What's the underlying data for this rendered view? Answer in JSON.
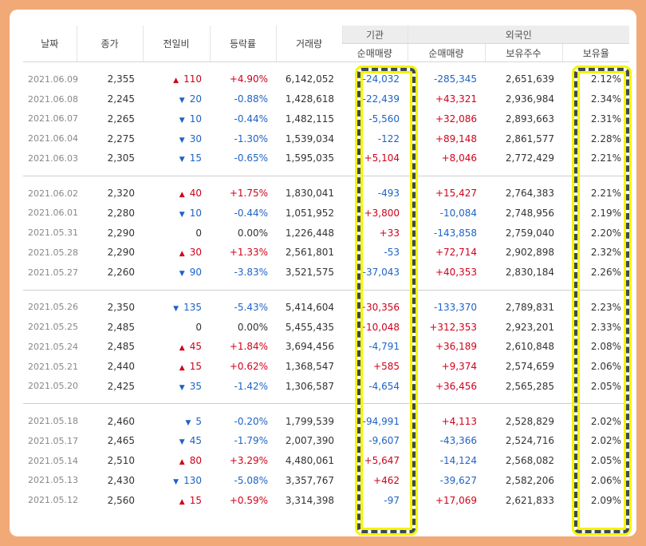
{
  "colors": {
    "up": "#d0021b",
    "down": "#1d63c6",
    "highlight": "#f6f400",
    "frame": "#f2a978"
  },
  "headers": {
    "date": "날짜",
    "close": "종가",
    "change": "전일비",
    "rate": "등락률",
    "volume": "거래량",
    "institution": "기관",
    "foreign": "외국인",
    "inst_net": "순매매량",
    "for_net": "순매매량",
    "holdings": "보유주수",
    "ratio": "보유율"
  },
  "groups": [
    [
      {
        "date": "2021.06.09",
        "close": "2,355",
        "dir": "up",
        "change": "110",
        "rate": "+4.90%",
        "volume": "6,142,052",
        "inst": "-24,032",
        "foreign": "-285,345",
        "holdings": "2,651,639",
        "ratio": "2.12%"
      },
      {
        "date": "2021.06.08",
        "close": "2,245",
        "dir": "down",
        "change": "20",
        "rate": "-0.88%",
        "volume": "1,428,618",
        "inst": "-22,439",
        "foreign": "+43,321",
        "holdings": "2,936,984",
        "ratio": "2.34%"
      },
      {
        "date": "2021.06.07",
        "close": "2,265",
        "dir": "down",
        "change": "10",
        "rate": "-0.44%",
        "volume": "1,482,115",
        "inst": "-5,560",
        "foreign": "+32,086",
        "holdings": "2,893,663",
        "ratio": "2.31%"
      },
      {
        "date": "2021.06.04",
        "close": "2,275",
        "dir": "down",
        "change": "30",
        "rate": "-1.30%",
        "volume": "1,539,034",
        "inst": "-122",
        "foreign": "+89,148",
        "holdings": "2,861,577",
        "ratio": "2.28%"
      },
      {
        "date": "2021.06.03",
        "close": "2,305",
        "dir": "down",
        "change": "15",
        "rate": "-0.65%",
        "volume": "1,595,035",
        "inst": "+5,104",
        "foreign": "+8,046",
        "holdings": "2,772,429",
        "ratio": "2.21%"
      }
    ],
    [
      {
        "date": "2021.06.02",
        "close": "2,320",
        "dir": "up",
        "change": "40",
        "rate": "+1.75%",
        "volume": "1,830,041",
        "inst": "-493",
        "foreign": "+15,427",
        "holdings": "2,764,383",
        "ratio": "2.21%"
      },
      {
        "date": "2021.06.01",
        "close": "2,280",
        "dir": "down",
        "change": "10",
        "rate": "-0.44%",
        "volume": "1,051,952",
        "inst": "+3,800",
        "foreign": "-10,084",
        "holdings": "2,748,956",
        "ratio": "2.19%"
      },
      {
        "date": "2021.05.31",
        "close": "2,290",
        "dir": "flat",
        "change": "0",
        "rate": "0.00%",
        "volume": "1,226,448",
        "inst": "+33",
        "foreign": "-143,858",
        "holdings": "2,759,040",
        "ratio": "2.20%"
      },
      {
        "date": "2021.05.28",
        "close": "2,290",
        "dir": "up",
        "change": "30",
        "rate": "+1.33%",
        "volume": "2,561,801",
        "inst": "-53",
        "foreign": "+72,714",
        "holdings": "2,902,898",
        "ratio": "2.32%"
      },
      {
        "date": "2021.05.27",
        "close": "2,260",
        "dir": "down",
        "change": "90",
        "rate": "-3.83%",
        "volume": "3,521,575",
        "inst": "-37,043",
        "foreign": "+40,353",
        "holdings": "2,830,184",
        "ratio": "2.26%"
      }
    ],
    [
      {
        "date": "2021.05.26",
        "close": "2,350",
        "dir": "down",
        "change": "135",
        "rate": "-5.43%",
        "volume": "5,414,604",
        "inst": "+30,356",
        "foreign": "-133,370",
        "holdings": "2,789,831",
        "ratio": "2.23%"
      },
      {
        "date": "2021.05.25",
        "close": "2,485",
        "dir": "flat",
        "change": "0",
        "rate": "0.00%",
        "volume": "5,455,435",
        "inst": "+10,048",
        "foreign": "+312,353",
        "holdings": "2,923,201",
        "ratio": "2.33%"
      },
      {
        "date": "2021.05.24",
        "close": "2,485",
        "dir": "up",
        "change": "45",
        "rate": "+1.84%",
        "volume": "3,694,456",
        "inst": "-4,791",
        "foreign": "+36,189",
        "holdings": "2,610,848",
        "ratio": "2.08%"
      },
      {
        "date": "2021.05.21",
        "close": "2,440",
        "dir": "up",
        "change": "15",
        "rate": "+0.62%",
        "volume": "1,368,547",
        "inst": "+585",
        "foreign": "+9,374",
        "holdings": "2,574,659",
        "ratio": "2.06%"
      },
      {
        "date": "2021.05.20",
        "close": "2,425",
        "dir": "down",
        "change": "35",
        "rate": "-1.42%",
        "volume": "1,306,587",
        "inst": "-4,654",
        "foreign": "+36,456",
        "holdings": "2,565,285",
        "ratio": "2.05%"
      }
    ],
    [
      {
        "date": "2021.05.18",
        "close": "2,460",
        "dir": "down",
        "change": "5",
        "rate": "-0.20%",
        "volume": "1,799,539",
        "inst": "-94,991",
        "foreign": "+4,113",
        "holdings": "2,528,829",
        "ratio": "2.02%"
      },
      {
        "date": "2021.05.17",
        "close": "2,465",
        "dir": "down",
        "change": "45",
        "rate": "-1.79%",
        "volume": "2,007,390",
        "inst": "-9,607",
        "foreign": "-43,366",
        "holdings": "2,524,716",
        "ratio": "2.02%"
      },
      {
        "date": "2021.05.14",
        "close": "2,510",
        "dir": "up",
        "change": "80",
        "rate": "+3.29%",
        "volume": "4,480,061",
        "inst": "+5,647",
        "foreign": "-14,124",
        "holdings": "2,568,082",
        "ratio": "2.05%"
      },
      {
        "date": "2021.05.13",
        "close": "2,430",
        "dir": "down",
        "change": "130",
        "rate": "-5.08%",
        "volume": "3,357,767",
        "inst": "+462",
        "foreign": "-39,627",
        "holdings": "2,582,206",
        "ratio": "2.06%"
      },
      {
        "date": "2021.05.12",
        "close": "2,560",
        "dir": "up",
        "change": "15",
        "rate": "+0.59%",
        "volume": "3,314,398",
        "inst": "-97",
        "foreign": "+17,069",
        "holdings": "2,621,833",
        "ratio": "2.09%"
      }
    ]
  ]
}
